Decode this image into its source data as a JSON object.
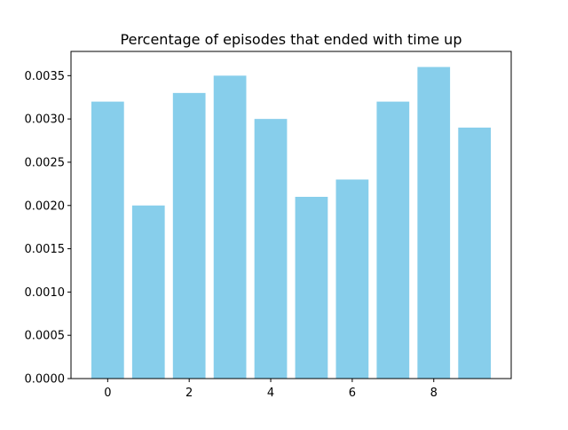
{
  "chart_data": {
    "type": "bar",
    "title": "Percentage of episodes that ended with time up",
    "xlabel": "",
    "ylabel": "",
    "x": [
      0,
      1,
      2,
      3,
      4,
      5,
      6,
      7,
      8,
      9
    ],
    "values": [
      0.0032,
      0.002,
      0.0033,
      0.0035,
      0.003,
      0.0021,
      0.0023,
      0.0032,
      0.0036,
      0.0029
    ],
    "xlim": [
      -0.9,
      9.9
    ],
    "ylim": [
      0,
      0.00378
    ],
    "xticks": [
      0,
      2,
      4,
      6,
      8
    ],
    "xtick_labels": [
      "0",
      "2",
      "4",
      "6",
      "8"
    ],
    "yticks": [
      0,
      0.0005,
      0.001,
      0.0015,
      0.002,
      0.0025,
      0.003,
      0.0035
    ],
    "ytick_labels": [
      "0.0000",
      "0.0005",
      "0.0010",
      "0.0015",
      "0.0020",
      "0.0025",
      "0.0030",
      "0.0035"
    ],
    "bar_width": 0.8,
    "grid": false,
    "legend": "none",
    "colors": {
      "bar": "#87ceeb",
      "axis": "#000000",
      "background": "#ffffff"
    }
  }
}
